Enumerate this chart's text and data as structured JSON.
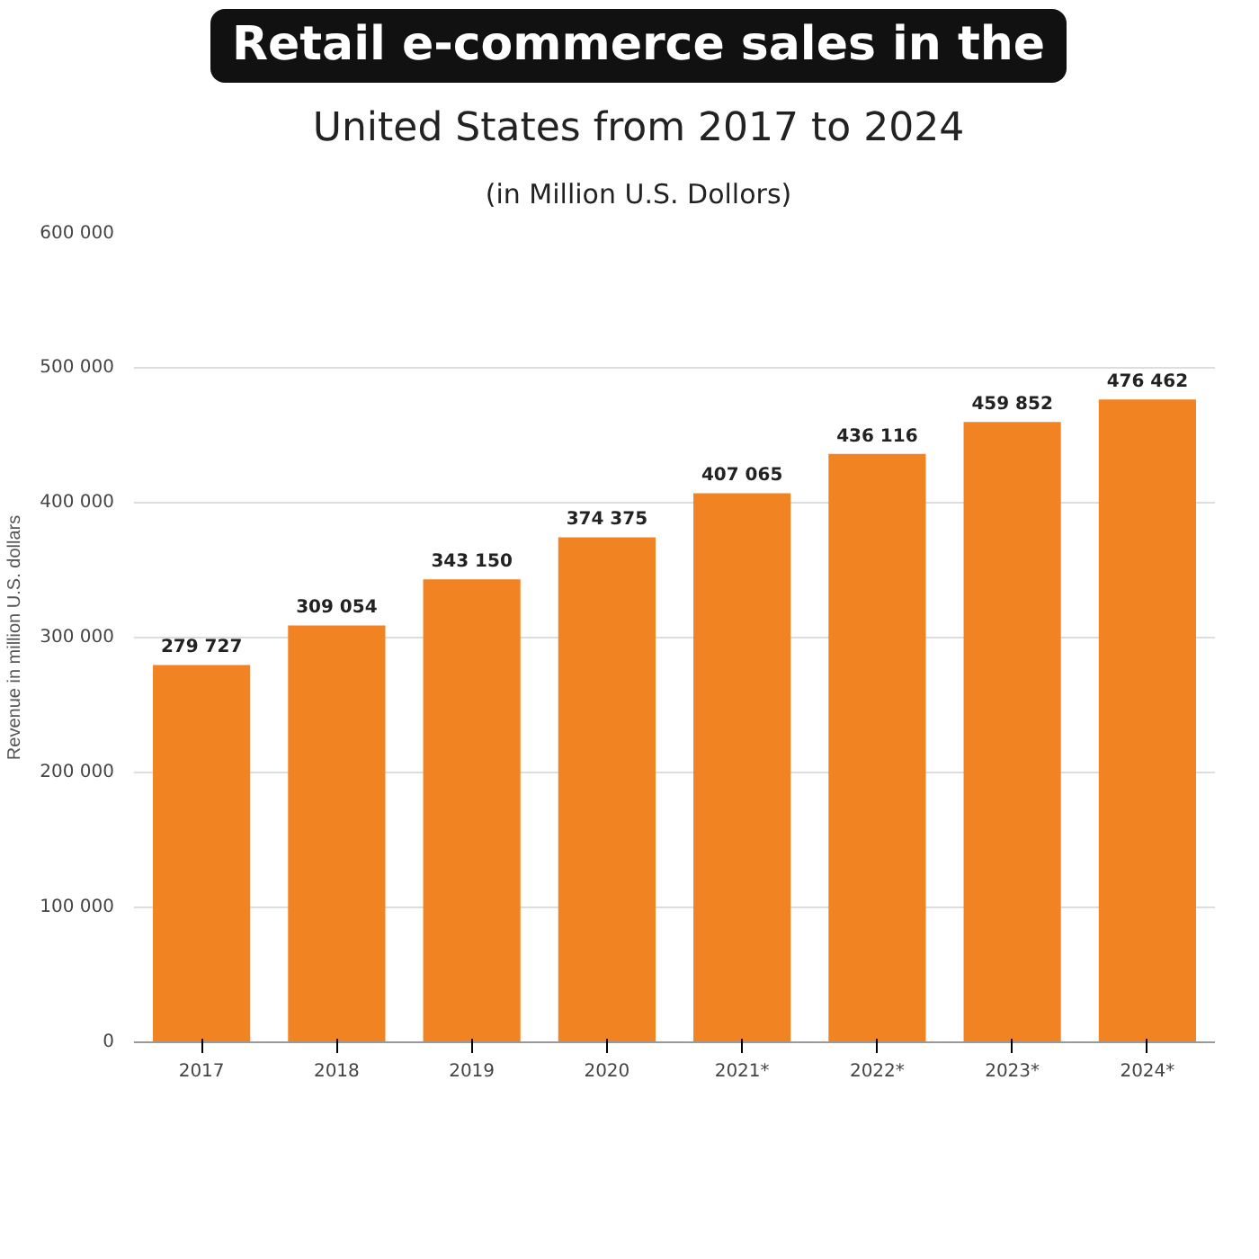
{
  "chart_data": {
    "type": "bar",
    "title": "Retail e-commerce sales in the\nUnited States from 2017 to 2024",
    "subtitle": "(in Million U.S. Dollors)",
    "ylabel": "Revenue in million U.S. dollars",
    "categories": [
      "2017",
      "2018",
      "2019",
      "2020",
      "2021*",
      "2022*",
      "2023*",
      "2024*"
    ],
    "values": [
      279727,
      309054,
      343150,
      374375,
      407065,
      436116,
      459852,
      476462
    ],
    "color": "#f28322",
    "ylim": [
      0,
      600000
    ],
    "yticks": [
      0,
      {
        "value": 100000,
        "label": "100 000"
      },
      {
        "value": 200000,
        "label": "200 000"
      },
      {
        "value": 300000,
        "label": "300 000"
      },
      {
        "value": 400000,
        "label": "400 000"
      },
      {
        "value": 500000,
        "label": "500 000"
      },
      {
        "value": 600000,
        "label": "600 000"
      }
    ],
    "grid": "y",
    "data_labels": true
  }
}
